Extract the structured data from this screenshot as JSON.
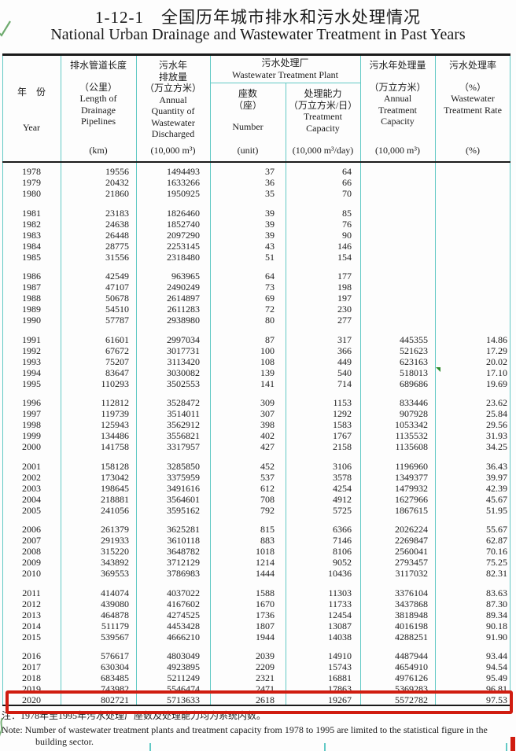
{
  "title": {
    "zh": "1-12-1　全国历年城市排水和污水处理情况",
    "en": "National Urban Drainage and Wastewater Treatment in Past Years"
  },
  "header": {
    "year": {
      "zh": "年　份",
      "en": "Year"
    },
    "drainage": {
      "zh": "排水管道长度",
      "unit_zh": "（公里）",
      "en": "Length of\nDrainage\nPipelines",
      "unit_en": "(km)"
    },
    "discharge": {
      "zh": "污水年\n排放量\n（万立方米）",
      "en": "Annual\nQuantity of\nWastewater\nDischarged",
      "unit_en": "(10,000 m³)"
    },
    "plant_group": {
      "zh": "污水处理厂",
      "en": "Wastewater Treatment Plant"
    },
    "plant_number": {
      "zh": "座数\n（座）",
      "en": "Number",
      "unit_en": "(unit)"
    },
    "plant_capacity": {
      "zh": "处理能力\n（万立方米/日）",
      "en": "Treatment\nCapacity",
      "unit_en": "(10,000 m³/day)"
    },
    "treatment": {
      "zh": "污水年处理量",
      "unit_zh": "（万立方米）",
      "en": "Annual\nTreatment\nCapacity",
      "unit_en": "(10,000 m³)"
    },
    "rate": {
      "zh": "污水处理率",
      "unit_zh": "（%）",
      "en": "Wastewater\nTreatment Rate",
      "unit_en": "(%)"
    }
  },
  "row_groups": [
    [
      [
        "1978",
        "19556",
        "1494493",
        "37",
        "64",
        "",
        ""
      ],
      [
        "1979",
        "20432",
        "1633266",
        "36",
        "66",
        "",
        ""
      ],
      [
        "1980",
        "21860",
        "1950925",
        "35",
        "70",
        "",
        ""
      ]
    ],
    [
      [
        "1981",
        "23183",
        "1826460",
        "39",
        "85",
        "",
        ""
      ],
      [
        "1982",
        "24638",
        "1852740",
        "39",
        "76",
        "",
        ""
      ],
      [
        "1983",
        "26448",
        "2097290",
        "39",
        "90",
        "",
        ""
      ],
      [
        "1984",
        "28775",
        "2253145",
        "43",
        "146",
        "",
        ""
      ],
      [
        "1985",
        "31556",
        "2318480",
        "51",
        "154",
        "",
        ""
      ]
    ],
    [
      [
        "1986",
        "42549",
        "963965",
        "64",
        "177",
        "",
        ""
      ],
      [
        "1987",
        "47107",
        "2490249",
        "73",
        "198",
        "",
        ""
      ],
      [
        "1988",
        "50678",
        "2614897",
        "69",
        "197",
        "",
        ""
      ],
      [
        "1989",
        "54510",
        "2611283",
        "72",
        "230",
        "",
        ""
      ],
      [
        "1990",
        "57787",
        "2938980",
        "80",
        "277",
        "",
        ""
      ]
    ],
    [
      [
        "1991",
        "61601",
        "2997034",
        "87",
        "317",
        "445355",
        "14.86"
      ],
      [
        "1992",
        "67672",
        "3017731",
        "100",
        "366",
        "521623",
        "17.29"
      ],
      [
        "1993",
        "75207",
        "3113420",
        "108",
        "449",
        "623163",
        "20.02"
      ],
      [
        "1994",
        "83647",
        "3030082",
        "139",
        "540",
        "518013",
        "17.10"
      ],
      [
        "1995",
        "110293",
        "3502553",
        "141",
        "714",
        "689686",
        "19.69"
      ]
    ],
    [
      [
        "1996",
        "112812",
        "3528472",
        "309",
        "1153",
        "833446",
        "23.62"
      ],
      [
        "1997",
        "119739",
        "3514011",
        "307",
        "1292",
        "907928",
        "25.84"
      ],
      [
        "1998",
        "125943",
        "3562912",
        "398",
        "1583",
        "1053342",
        "29.56"
      ],
      [
        "1999",
        "134486",
        "3556821",
        "402",
        "1767",
        "1135532",
        "31.93"
      ],
      [
        "2000",
        "141758",
        "3317957",
        "427",
        "2158",
        "1135608",
        "34.25"
      ]
    ],
    [
      [
        "2001",
        "158128",
        "3285850",
        "452",
        "3106",
        "1196960",
        "36.43"
      ],
      [
        "2002",
        "173042",
        "3375959",
        "537",
        "3578",
        "1349377",
        "39.97"
      ],
      [
        "2003",
        "198645",
        "3491616",
        "612",
        "4254",
        "1479932",
        "42.39"
      ],
      [
        "2004",
        "218881",
        "3564601",
        "708",
        "4912",
        "1627966",
        "45.67"
      ],
      [
        "2005",
        "241056",
        "3595162",
        "792",
        "5725",
        "1867615",
        "51.95"
      ]
    ],
    [
      [
        "2006",
        "261379",
        "3625281",
        "815",
        "6366",
        "2026224",
        "55.67"
      ],
      [
        "2007",
        "291933",
        "3610118",
        "883",
        "7146",
        "2269847",
        "62.87"
      ],
      [
        "2008",
        "315220",
        "3648782",
        "1018",
        "8106",
        "2560041",
        "70.16"
      ],
      [
        "2009",
        "343892",
        "3712129",
        "1214",
        "9052",
        "2793457",
        "75.25"
      ],
      [
        "2010",
        "369553",
        "3786983",
        "1444",
        "10436",
        "3117032",
        "82.31"
      ]
    ],
    [
      [
        "2011",
        "414074",
        "4037022",
        "1588",
        "11303",
        "3376104",
        "83.63"
      ],
      [
        "2012",
        "439080",
        "4167602",
        "1670",
        "11733",
        "3437868",
        "87.30"
      ],
      [
        "2013",
        "464878",
        "4274525",
        "1736",
        "12454",
        "3818948",
        "89.34"
      ],
      [
        "2014",
        "511179",
        "4453428",
        "1807",
        "13087",
        "4016198",
        "90.18"
      ],
      [
        "2015",
        "539567",
        "4666210",
        "1944",
        "14038",
        "4288251",
        "91.90"
      ]
    ],
    [
      [
        "2016",
        "576617",
        "4803049",
        "2039",
        "14910",
        "4487944",
        "93.44"
      ],
      [
        "2017",
        "630304",
        "4923895",
        "2209",
        "15743",
        "4654910",
        "94.54"
      ],
      [
        "2018",
        "683485",
        "5211249",
        "2321",
        "16881",
        "4976126",
        "95.49"
      ],
      [
        "2019",
        "743982",
        "5546474",
        "2471",
        "17863",
        "5369283",
        "96.81"
      ],
      [
        "2020",
        "802721",
        "5713633",
        "2618",
        "19267",
        "5572782",
        "97.53"
      ]
    ]
  ],
  "highlight_year": "2020",
  "comment_marker": {
    "year": "1994",
    "col_index": 5
  },
  "notes": {
    "zh": "注：1978年至1995年污水处理厂座数及处理能力均为系统内数。",
    "en_line1": "Note: Number of wastewater treatment plants and treatment capacity from 1978 to 1995 are limited to the statistical figure in the",
    "en_line2": "building sector."
  },
  "colors": {
    "grid_teal": "#62c9c5",
    "table_border_black": "#1a1a1a",
    "highlight_red": "#d01c10",
    "annotation_green": "#2e8b2e"
  }
}
